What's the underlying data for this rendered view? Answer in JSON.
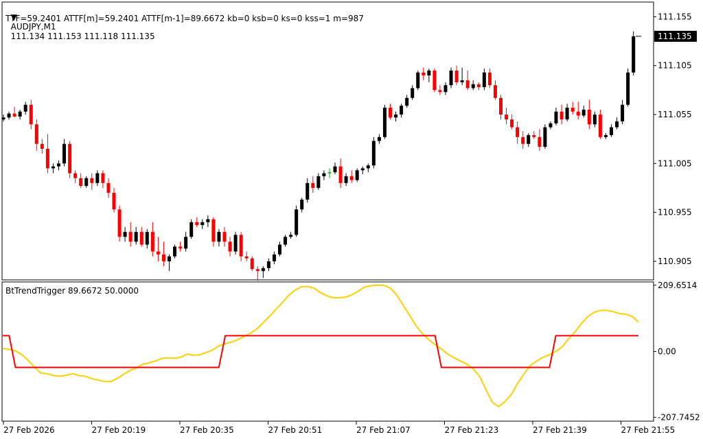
{
  "header": {
    "symbol": "AUDJPY,M1",
    "ohlc": "111.134 111.153 111.118 111.135",
    "indicator_line": "TTF=59.2401 ATTF[m]=59.2401 ATTF[m-1]=89.6672 kb=0 ksb=0 ks=0 kss=1 m=987"
  },
  "colors": {
    "bull": "#000000",
    "bear": "#ff0000",
    "doji": "#00b000",
    "ttf_line": "#ffd000",
    "trigger_line": "#ff0000",
    "price_tag_bg": "#000000"
  },
  "chart_data": [
    {
      "type": "candlestick",
      "title": "AUDJPY,M1",
      "y_ticks": [
        "111.155",
        "111.105",
        "111.055",
        "111.005",
        "110.955",
        "110.905"
      ],
      "ylim": [
        110.886,
        111.17
      ],
      "current_price": "111.135",
      "x_ticks": [
        "27 Feb 2026",
        "27 Feb 20:19",
        "27 Feb 20:35",
        "27 Feb 20:51",
        "27 Feb 21:07",
        "27 Feb 21:23",
        "27 Feb 21:39",
        "27 Feb 21:55"
      ],
      "candles": [
        [
          111.05,
          111.055,
          111.048,
          111.052
        ],
        [
          111.052,
          111.058,
          111.05,
          111.056
        ],
        [
          111.056,
          111.063,
          111.052,
          111.053
        ],
        [
          111.053,
          111.06,
          111.05,
          111.058
        ],
        [
          111.058,
          111.068,
          111.055,
          111.065
        ],
        [
          111.065,
          111.07,
          111.04,
          111.045
        ],
        [
          111.045,
          111.05,
          111.018,
          111.025
        ],
        [
          111.025,
          111.03,
          111.015,
          111.02
        ],
        [
          111.02,
          111.035,
          110.995,
          111.0
        ],
        [
          111.0,
          111.005,
          110.995,
          111.002
        ],
        [
          111.002,
          111.008,
          110.998,
          111.005
        ],
        [
          111.005,
          111.03,
          111.002,
          111.025
        ],
        [
          111.025,
          111.028,
          110.99,
          110.995
        ],
        [
          110.995,
          110.998,
          110.985,
          110.99
        ],
        [
          110.99,
          110.995,
          110.98,
          110.982
        ],
        [
          110.982,
          110.992,
          110.98,
          110.99
        ],
        [
          110.99,
          110.995,
          110.978,
          110.985
        ],
        [
          110.985,
          110.998,
          110.982,
          110.995
        ],
        [
          110.995,
          110.998,
          110.98,
          110.985
        ],
        [
          110.985,
          110.99,
          110.97,
          110.975
        ],
        [
          110.975,
          110.98,
          110.955,
          110.958
        ],
        [
          110.958,
          110.962,
          110.925,
          110.93
        ],
        [
          110.93,
          110.94,
          110.925,
          110.935
        ],
        [
          110.935,
          110.945,
          110.92,
          110.925
        ],
        [
          110.925,
          110.94,
          110.922,
          110.935
        ],
        [
          110.935,
          110.94,
          110.92,
          110.922
        ],
        [
          110.922,
          110.938,
          110.918,
          110.935
        ],
        [
          110.935,
          110.945,
          110.91,
          110.915
        ],
        [
          110.915,
          110.93,
          110.905,
          110.912
        ],
        [
          110.912,
          110.925,
          110.9,
          110.905
        ],
        [
          110.905,
          110.912,
          110.895,
          110.91
        ],
        [
          110.91,
          110.922,
          110.908,
          110.92
        ],
        [
          110.92,
          110.925,
          110.915,
          110.918
        ],
        [
          110.918,
          110.935,
          110.915,
          110.93
        ],
        [
          110.93,
          110.948,
          110.928,
          110.945
        ],
        [
          110.945,
          110.95,
          110.94,
          110.942
        ],
        [
          110.942,
          110.948,
          110.938,
          110.945
        ],
        [
          110.945,
          110.952,
          110.94,
          110.948
        ],
        [
          110.948,
          110.95,
          110.92,
          110.925
        ],
        [
          110.925,
          110.938,
          110.92,
          110.935
        ],
        [
          110.935,
          110.94,
          110.92,
          110.925
        ],
        [
          110.925,
          110.93,
          110.91,
          110.915
        ],
        [
          110.915,
          110.935,
          110.912,
          110.932
        ],
        [
          110.932,
          110.935,
          110.905,
          110.91
        ],
        [
          110.91,
          110.915,
          110.905,
          110.908
        ],
        [
          110.908,
          110.91,
          110.895,
          110.897
        ],
        [
          110.897,
          110.9,
          110.885,
          110.895
        ],
        [
          110.895,
          110.9,
          110.888,
          110.898
        ],
        [
          110.898,
          110.908,
          110.895,
          110.905
        ],
        [
          110.905,
          110.915,
          110.902,
          110.912
        ],
        [
          110.912,
          110.925,
          110.91,
          110.922
        ],
        [
          110.922,
          110.932,
          110.92,
          110.93
        ],
        [
          110.93,
          110.935,
          110.928,
          110.932
        ],
        [
          110.932,
          110.962,
          110.93,
          110.958
        ],
        [
          110.958,
          110.97,
          110.955,
          110.968
        ],
        [
          110.968,
          110.99,
          110.965,
          110.985
        ],
        [
          110.985,
          110.992,
          110.975,
          110.98
        ],
        [
          110.98,
          110.995,
          110.978,
          110.992
        ],
        [
          110.992,
          110.998,
          110.988,
          110.995
        ],
        [
          110.995,
          111.0,
          110.99,
          110.996
        ],
        [
          110.996,
          111.006,
          110.994,
          111.002
        ],
        [
          111.002,
          111.01,
          110.98,
          110.985
        ],
        [
          110.985,
          110.995,
          110.982,
          110.992
        ],
        [
          110.992,
          110.998,
          110.985,
          110.988
        ],
        [
          110.988,
          111.0,
          110.986,
          110.998
        ],
        [
          110.998,
          111.002,
          110.994,
          111.0
        ],
        [
          111.0,
          111.005,
          110.996,
          111.003
        ],
        [
          111.003,
          111.032,
          111.0,
          111.028
        ],
        [
          111.028,
          111.035,
          111.025,
          111.032
        ],
        [
          111.032,
          111.065,
          111.03,
          111.062
        ],
        [
          111.062,
          111.066,
          111.05,
          111.052
        ],
        [
          111.052,
          111.058,
          111.048,
          111.055
        ],
        [
          111.055,
          111.066,
          111.052,
          111.064
        ],
        [
          111.064,
          111.075,
          111.062,
          111.072
        ],
        [
          111.072,
          111.085,
          111.07,
          111.082
        ],
        [
          111.082,
          111.1,
          111.08,
          111.098
        ],
        [
          111.098,
          111.103,
          111.09,
          111.095
        ],
        [
          111.095,
          111.102,
          111.088,
          111.1
        ],
        [
          111.1,
          111.102,
          111.078,
          111.08
        ],
        [
          111.08,
          111.085,
          111.075,
          111.078
        ],
        [
          111.078,
          111.088,
          111.075,
          111.085
        ],
        [
          111.085,
          111.103,
          111.082,
          111.1
        ],
        [
          111.1,
          111.105,
          111.085,
          111.088
        ],
        [
          111.088,
          111.103,
          111.085,
          111.09
        ],
        [
          111.09,
          111.1,
          111.08,
          111.082
        ],
        [
          111.082,
          111.09,
          111.08,
          111.086
        ],
        [
          111.086,
          111.088,
          111.08,
          111.083
        ],
        [
          111.083,
          111.102,
          111.08,
          111.098
        ],
        [
          111.098,
          111.102,
          111.082,
          111.085
        ],
        [
          111.085,
          111.09,
          111.07,
          111.072
        ],
        [
          111.072,
          111.075,
          111.05,
          111.055
        ],
        [
          111.055,
          111.062,
          111.045,
          111.05
        ],
        [
          111.05,
          111.055,
          111.04,
          111.042
        ],
        [
          111.042,
          111.048,
          111.025,
          111.032
        ],
        [
          111.032,
          111.038,
          111.02,
          111.025
        ],
        [
          111.025,
          111.036,
          111.022,
          111.034
        ],
        [
          111.034,
          111.038,
          111.03,
          111.032
        ],
        [
          111.032,
          111.04,
          111.018,
          111.022
        ],
        [
          111.022,
          111.045,
          111.02,
          111.042
        ],
        [
          111.042,
          111.048,
          111.04,
          111.046
        ],
        [
          111.046,
          111.062,
          111.044,
          111.058
        ],
        [
          111.058,
          111.065,
          111.045,
          111.05
        ],
        [
          111.05,
          111.066,
          111.048,
          111.062
        ],
        [
          111.062,
          111.068,
          111.055,
          111.058
        ],
        [
          111.058,
          111.068,
          111.05,
          111.054
        ],
        [
          111.054,
          111.064,
          111.052,
          111.06
        ],
        [
          111.06,
          111.07,
          111.04,
          111.045
        ],
        [
          111.045,
          111.058,
          111.042,
          111.055
        ],
        [
          111.055,
          111.06,
          111.03,
          111.032
        ],
        [
          111.032,
          111.036,
          111.03,
          111.034
        ],
        [
          111.034,
          111.045,
          111.032,
          111.042
        ],
        [
          111.042,
          111.052,
          111.04,
          111.048
        ],
        [
          111.048,
          111.07,
          111.045,
          111.065
        ],
        [
          111.065,
          111.102,
          111.063,
          111.098
        ],
        [
          111.098,
          111.14,
          111.095,
          111.135
        ]
      ]
    },
    {
      "type": "line",
      "title": "BtTrendTrigger 89.6672 50.0000",
      "y_ticks": [
        "209.6514",
        "0.00",
        "-207.7452"
      ],
      "ylim": [
        -220,
        220
      ],
      "series": [
        {
          "color": "#ffd000",
          "values": [
            10,
            7,
            2,
            -10,
            -28,
            -50,
            -68,
            -70,
            -76,
            -78,
            -75,
            -70,
            -76,
            -78,
            -86,
            -90,
            -95,
            -95,
            -85,
            -72,
            -60,
            -52,
            -40,
            -36,
            -30,
            -22,
            -20,
            -21,
            -18,
            -8,
            -12,
            -10,
            -3,
            5,
            18,
            25,
            30,
            38,
            48,
            58,
            72,
            92,
            112,
            134,
            155,
            178,
            194,
            205,
            205,
            200,
            186,
            176,
            170,
            170,
            172,
            180,
            192,
            205,
            208,
            210,
            209,
            200,
            178,
            146,
            114,
            82,
            56,
            38,
            22,
            8,
            -8,
            -20,
            -30,
            -40,
            -55,
            -78,
            -120,
            -160,
            -174,
            -158,
            -136,
            -100,
            -70,
            -44,
            -30,
            -18,
            -10,
            0,
            15,
            40,
            62,
            88,
            110,
            124,
            130,
            130,
            126,
            120,
            118,
            111,
            93
          ]
        },
        {
          "color": "#ff0000",
          "values": [
            50,
            50,
            -50,
            -50,
            -50,
            -50,
            -50,
            -50,
            -50,
            -50,
            -50,
            -50,
            -50,
            -50,
            -50,
            -50,
            -50,
            -50,
            -50,
            -50,
            -50,
            -50,
            -50,
            -50,
            -50,
            -50,
            -50,
            -50,
            -50,
            -50,
            -50,
            -50,
            -50,
            -50,
            -50,
            50,
            50,
            50,
            50,
            50,
            50,
            50,
            50,
            50,
            50,
            50,
            50,
            50,
            50,
            50,
            50,
            50,
            50,
            50,
            50,
            50,
            50,
            50,
            50,
            50,
            50,
            50,
            50,
            50,
            50,
            50,
            50,
            50,
            50,
            -50,
            -50,
            -50,
            -50,
            -50,
            -50,
            -50,
            -50,
            -50,
            -50,
            -50,
            -50,
            -50,
            -50,
            -50,
            -50,
            -50,
            -50,
            50,
            50,
            50,
            50,
            50,
            50,
            50,
            50,
            50,
            50,
            50,
            50,
            50,
            50
          ]
        }
      ]
    }
  ]
}
